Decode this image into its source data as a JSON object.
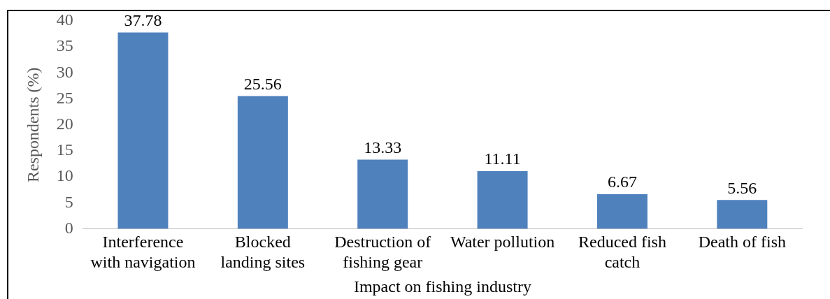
{
  "chart_data": {
    "type": "bar",
    "xlabel": "Impact on fishing industry",
    "ylabel": "Respondents (%)",
    "categories": [
      "Interference with navigation",
      "Blocked landing sites",
      "Destruction of fishing gear",
      "Water pollution",
      "Reduced fish catch",
      "Death of fish"
    ],
    "values": [
      37.78,
      25.56,
      13.33,
      11.11,
      6.67,
      5.56
    ],
    "color": "#4f81bd",
    "ylim": [
      0,
      40
    ],
    "yticks": [
      0,
      5,
      10,
      15,
      20,
      25,
      30,
      35,
      40
    ],
    "grid": false,
    "legend": false,
    "data_labels": true
  }
}
